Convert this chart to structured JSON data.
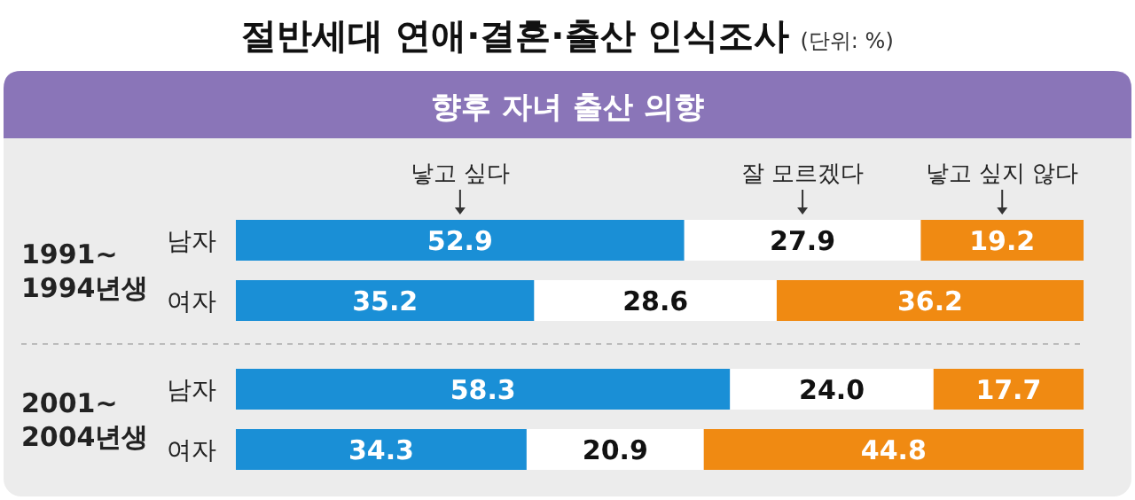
{
  "chart_data": {
    "type": "bar",
    "orientation": "horizontal",
    "stacked": true,
    "title": "절반세대 연애·결혼·출산 인식조사",
    "subtitle": "향후 자녀 출산 의향",
    "annotations": [
      "(단위: %)",
      "1991~ 1994년생",
      "2001~ 2004년생"
    ],
    "categories": [
      "남자",
      "여자",
      "남자",
      "여자"
    ],
    "xlim": [
      0,
      100
    ],
    "tick_labels": "y",
    "legend": "top",
    "data_labels": true,
    "series": [
      {
        "name": "낳고 싶다",
        "color": "#1a8fd6",
        "values": [
          52.9,
          35.2,
          58.3,
          34.3
        ]
      },
      {
        "name": "잘 모르겠다",
        "color": "#ffffff",
        "values": [
          27.9,
          28.6,
          24.0,
          20.9
        ],
        "value_labels": [
          "27.9",
          "28.6",
          "24.0",
          "20.9"
        ]
      },
      {
        "name": "낳고 싶지 않다",
        "color": "#f08a12",
        "values": [
          19.2,
          36.2,
          17.7,
          44.8
        ]
      }
    ]
  }
}
